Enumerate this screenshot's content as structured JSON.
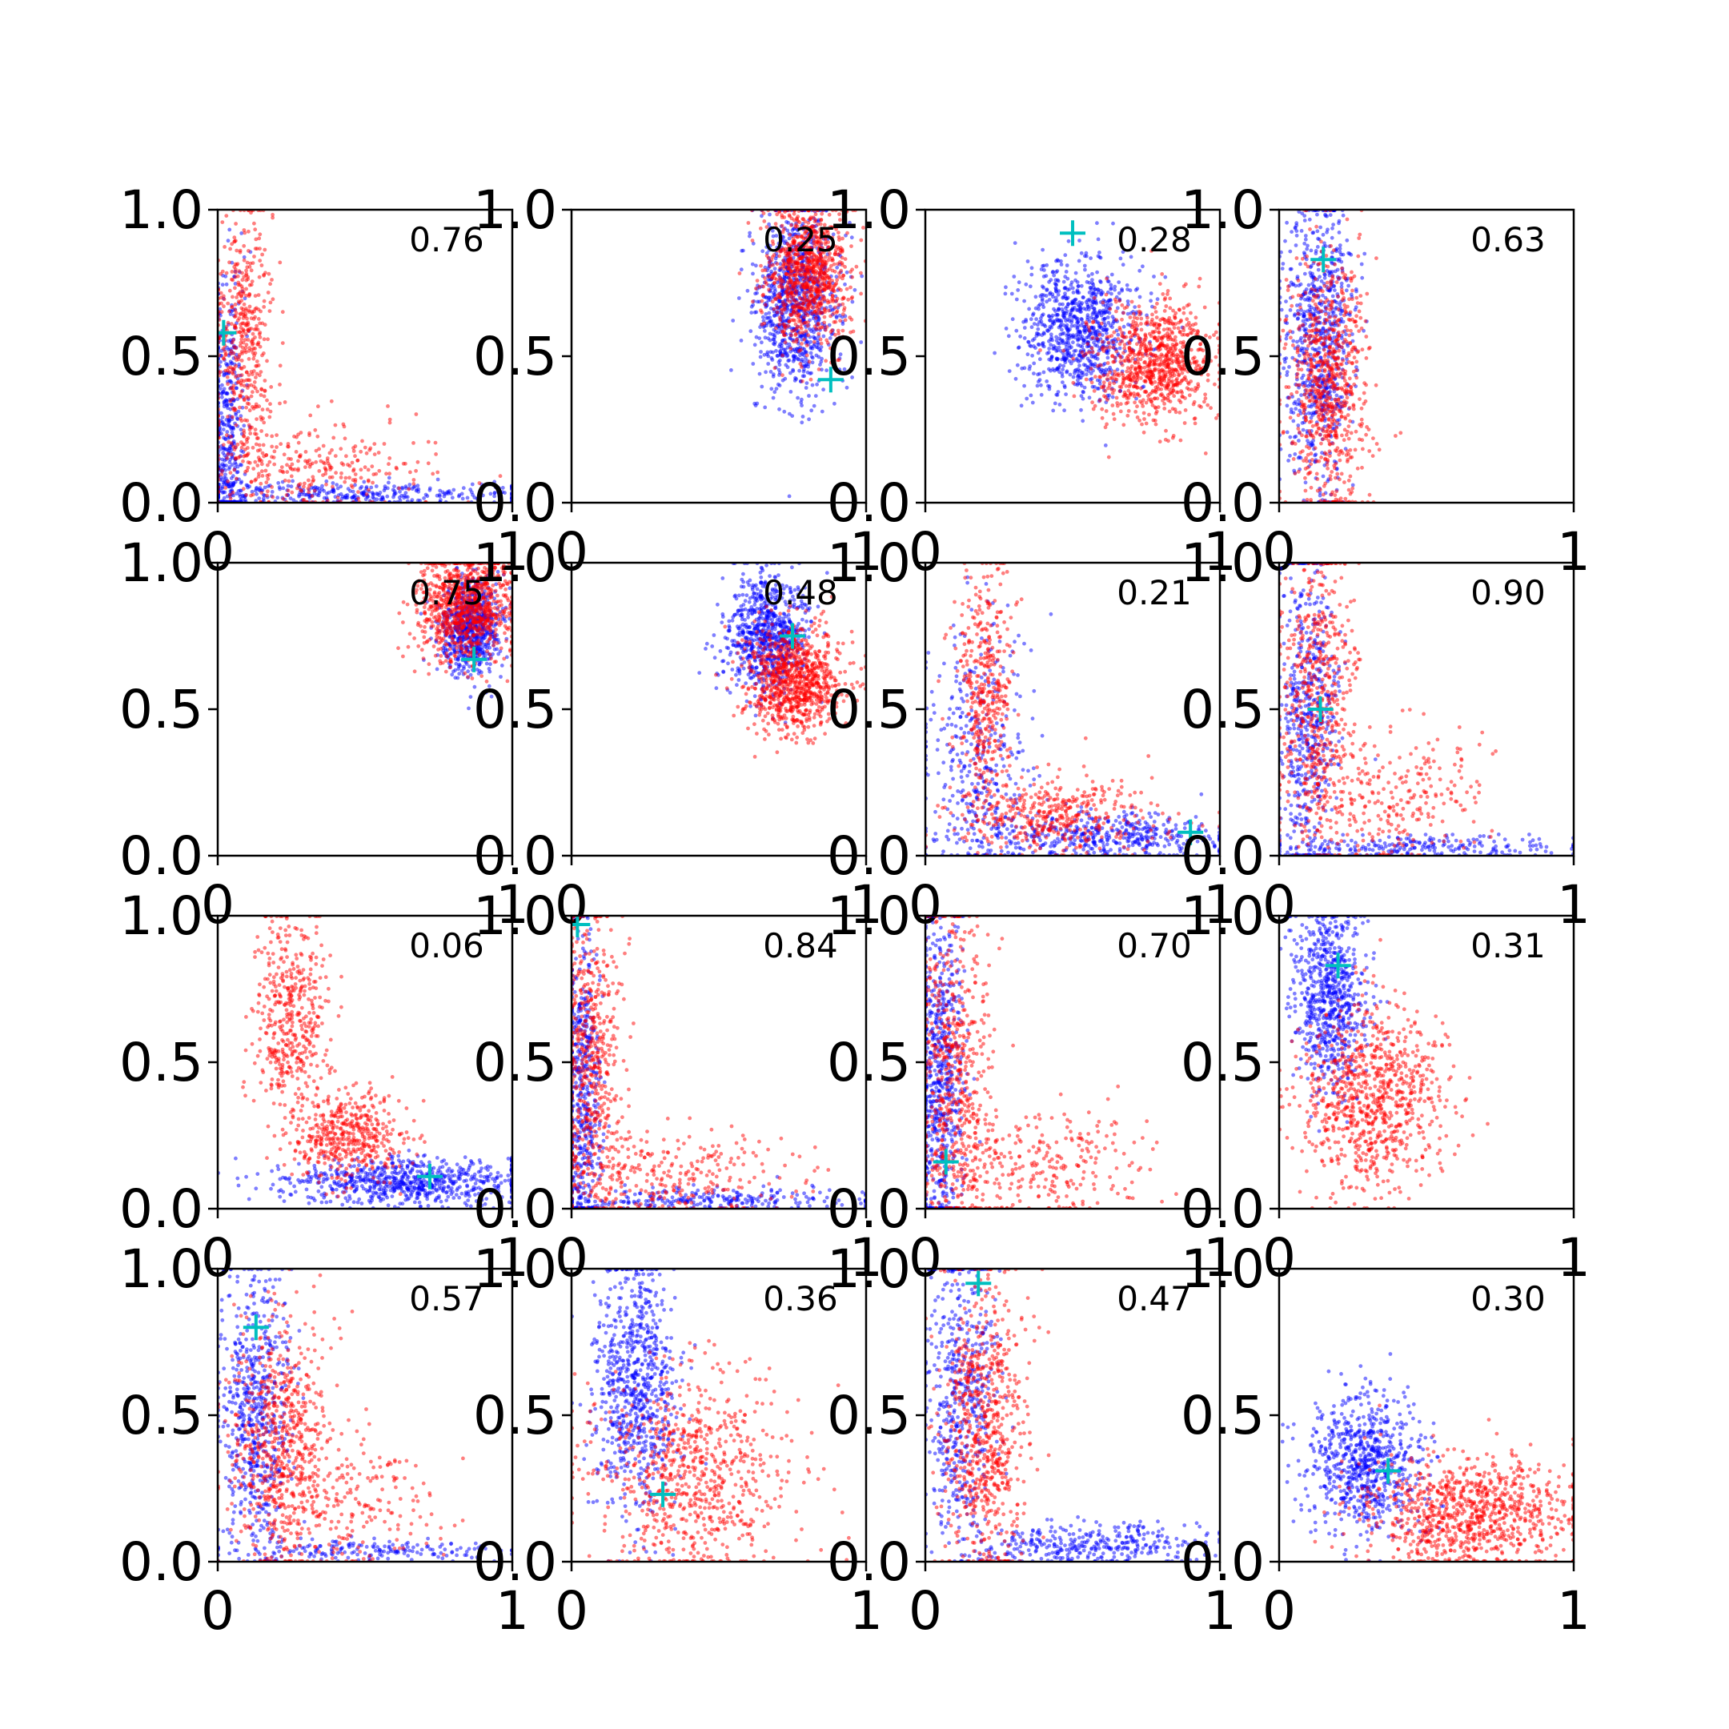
{
  "figure": {
    "colors": {
      "series_blue": "#0000ff",
      "series_red": "#ff0000",
      "marker": "#00bfbf",
      "axes": "#000000",
      "background": "#ffffff"
    }
  },
  "chart_data": [
    {
      "type": "scatter",
      "annotation": "0.76",
      "xlim": [
        0,
        1
      ],
      "ylim": [
        0,
        1
      ],
      "x_ticks": [
        "0",
        "1"
      ],
      "y_ticks": [
        "0.0",
        "0.5",
        "1.0"
      ],
      "marker": [
        0.02,
        0.58
      ],
      "clusters": {
        "blue": [
          {
            "cx": 0.03,
            "cy": 0.25,
            "sx": 0.03,
            "sy": 0.25,
            "n": 450
          },
          {
            "cx": 0.45,
            "cy": 0.03,
            "sx": 0.3,
            "sy": 0.02,
            "n": 320
          }
        ],
        "red": [
          {
            "cx": 0.09,
            "cy": 0.55,
            "sx": 0.05,
            "sy": 0.22,
            "n": 450
          },
          {
            "cx": 0.3,
            "cy": 0.12,
            "sx": 0.2,
            "sy": 0.08,
            "n": 300
          }
        ]
      }
    },
    {
      "type": "scatter",
      "annotation": "0.25",
      "xlim": [
        0,
        1
      ],
      "ylim": [
        0,
        1
      ],
      "x_ticks": [
        "0",
        "1"
      ],
      "y_ticks": [
        "0.0",
        "0.5",
        "1.0"
      ],
      "marker": [
        0.88,
        0.42
      ],
      "clusters": {
        "blue": [
          {
            "cx": 0.76,
            "cy": 0.68,
            "sx": 0.07,
            "sy": 0.16,
            "n": 900
          }
        ],
        "red": [
          {
            "cx": 0.8,
            "cy": 0.78,
            "sx": 0.07,
            "sy": 0.12,
            "n": 900
          }
        ]
      }
    },
    {
      "type": "scatter",
      "annotation": "0.28",
      "xlim": [
        0,
        1
      ],
      "ylim": [
        0,
        1
      ],
      "x_ticks": [
        "0",
        "1"
      ],
      "y_ticks": [
        "0.0",
        "0.5",
        "1.0"
      ],
      "marker": [
        0.5,
        0.92
      ],
      "clusters": {
        "blue": [
          {
            "cx": 0.52,
            "cy": 0.6,
            "sx": 0.1,
            "sy": 0.12,
            "n": 850
          }
        ],
        "red": [
          {
            "cx": 0.78,
            "cy": 0.48,
            "sx": 0.1,
            "sy": 0.1,
            "n": 850
          }
        ]
      }
    },
    {
      "type": "scatter",
      "annotation": "0.63",
      "xlim": [
        0,
        1
      ],
      "ylim": [
        0,
        1
      ],
      "x_ticks": [
        "0",
        "1"
      ],
      "y_ticks": [
        "0.0",
        "0.5",
        "1.0"
      ],
      "marker": [
        0.15,
        0.83
      ],
      "clusters": {
        "blue": [
          {
            "cx": 0.14,
            "cy": 0.55,
            "sx": 0.06,
            "sy": 0.25,
            "n": 750
          }
        ],
        "red": [
          {
            "cx": 0.17,
            "cy": 0.4,
            "sx": 0.07,
            "sy": 0.24,
            "n": 750
          }
        ]
      }
    },
    {
      "type": "scatter",
      "annotation": "0.75",
      "xlim": [
        0,
        1
      ],
      "ylim": [
        0,
        1
      ],
      "x_ticks": [
        "0",
        "1"
      ],
      "y_ticks": [
        "0.0",
        "0.5",
        "1.0"
      ],
      "marker": [
        0.87,
        0.67
      ],
      "clusters": {
        "blue": [
          {
            "cx": 0.86,
            "cy": 0.78,
            "sx": 0.05,
            "sy": 0.08,
            "n": 700
          }
        ],
        "red": [
          {
            "cx": 0.84,
            "cy": 0.85,
            "sx": 0.08,
            "sy": 0.09,
            "n": 900
          }
        ]
      }
    },
    {
      "type": "scatter",
      "annotation": "0.48",
      "xlim": [
        0,
        1
      ],
      "ylim": [
        0,
        1
      ],
      "x_ticks": [
        "0",
        "1"
      ],
      "y_ticks": [
        "0.0",
        "0.5",
        "1.0"
      ],
      "marker": [
        0.75,
        0.75
      ],
      "clusters": {
        "blue": [
          {
            "cx": 0.66,
            "cy": 0.75,
            "sx": 0.07,
            "sy": 0.1,
            "n": 750
          }
        ],
        "red": [
          {
            "cx": 0.76,
            "cy": 0.6,
            "sx": 0.08,
            "sy": 0.09,
            "n": 900
          }
        ]
      }
    },
    {
      "type": "scatter",
      "annotation": "0.21",
      "xlim": [
        0,
        1
      ],
      "ylim": [
        0,
        1
      ],
      "x_ticks": [
        "0",
        "1"
      ],
      "y_ticks": [
        "0.0",
        "0.5",
        "1.0"
      ],
      "marker": [
        0.9,
        0.08
      ],
      "clusters": {
        "blue": [
          {
            "cx": 0.18,
            "cy": 0.35,
            "sx": 0.09,
            "sy": 0.22,
            "n": 350
          },
          {
            "cx": 0.6,
            "cy": 0.07,
            "sx": 0.22,
            "sy": 0.04,
            "n": 450
          }
        ],
        "red": [
          {
            "cx": 0.2,
            "cy": 0.55,
            "sx": 0.05,
            "sy": 0.22,
            "n": 400
          },
          {
            "cx": 0.45,
            "cy": 0.14,
            "sx": 0.18,
            "sy": 0.07,
            "n": 400
          }
        ]
      }
    },
    {
      "type": "scatter",
      "annotation": "0.90",
      "xlim": [
        0,
        1
      ],
      "ylim": [
        0,
        1
      ],
      "x_ticks": [
        "0",
        "1"
      ],
      "y_ticks": [
        "0.0",
        "0.5",
        "1.0"
      ],
      "marker": [
        0.14,
        0.5
      ],
      "clusters": {
        "blue": [
          {
            "cx": 0.1,
            "cy": 0.45,
            "sx": 0.05,
            "sy": 0.28,
            "n": 550
          },
          {
            "cx": 0.5,
            "cy": 0.03,
            "sx": 0.25,
            "sy": 0.02,
            "n": 220
          }
        ],
        "red": [
          {
            "cx": 0.13,
            "cy": 0.55,
            "sx": 0.06,
            "sy": 0.25,
            "n": 500
          },
          {
            "cx": 0.35,
            "cy": 0.18,
            "sx": 0.18,
            "sy": 0.12,
            "n": 300
          }
        ]
      }
    },
    {
      "type": "scatter",
      "annotation": "0.06",
      "xlim": [
        0,
        1
      ],
      "ylim": [
        0,
        1
      ],
      "x_ticks": [
        "0",
        "1"
      ],
      "y_ticks": [
        "0.0",
        "0.5",
        "1.0"
      ],
      "marker": [
        0.72,
        0.11
      ],
      "clusters": {
        "blue": [
          {
            "cx": 0.65,
            "cy": 0.09,
            "sx": 0.2,
            "sy": 0.04,
            "n": 700
          }
        ],
        "red": [
          {
            "cx": 0.25,
            "cy": 0.65,
            "sx": 0.06,
            "sy": 0.18,
            "n": 450
          },
          {
            "cx": 0.45,
            "cy": 0.25,
            "sx": 0.1,
            "sy": 0.08,
            "n": 450
          }
        ]
      }
    },
    {
      "type": "scatter",
      "annotation": "0.84",
      "xlim": [
        0,
        1
      ],
      "ylim": [
        0,
        1
      ],
      "x_ticks": [
        "0",
        "1"
      ],
      "y_ticks": [
        "0.0",
        "0.5",
        "1.0"
      ],
      "marker": [
        0.02,
        0.97
      ],
      "clusters": {
        "blue": [
          {
            "cx": 0.04,
            "cy": 0.4,
            "sx": 0.03,
            "sy": 0.28,
            "n": 500
          },
          {
            "cx": 0.45,
            "cy": 0.03,
            "sx": 0.28,
            "sy": 0.02,
            "n": 250
          }
        ],
        "red": [
          {
            "cx": 0.07,
            "cy": 0.5,
            "sx": 0.05,
            "sy": 0.26,
            "n": 500
          },
          {
            "cx": 0.35,
            "cy": 0.12,
            "sx": 0.2,
            "sy": 0.08,
            "n": 300
          }
        ]
      }
    },
    {
      "type": "scatter",
      "annotation": "0.70",
      "xlim": [
        0,
        1
      ],
      "ylim": [
        0,
        1
      ],
      "x_ticks": [
        "0",
        "1"
      ],
      "y_ticks": [
        "0.0",
        "0.5",
        "1.0"
      ],
      "marker": [
        0.07,
        0.16
      ],
      "clusters": {
        "blue": [
          {
            "cx": 0.05,
            "cy": 0.45,
            "sx": 0.04,
            "sy": 0.28,
            "n": 650
          }
        ],
        "red": [
          {
            "cx": 0.1,
            "cy": 0.45,
            "sx": 0.06,
            "sy": 0.28,
            "n": 550
          },
          {
            "cx": 0.38,
            "cy": 0.14,
            "sx": 0.2,
            "sy": 0.09,
            "n": 300
          }
        ]
      }
    },
    {
      "type": "scatter",
      "annotation": "0.31",
      "xlim": [
        0,
        1
      ],
      "ylim": [
        0,
        1
      ],
      "x_ticks": [
        "0",
        "1"
      ],
      "y_ticks": [
        "0.0",
        "0.5",
        "1.0"
      ],
      "marker": [
        0.2,
        0.83
      ],
      "clusters": {
        "blue": [
          {
            "cx": 0.17,
            "cy": 0.72,
            "sx": 0.06,
            "sy": 0.16,
            "n": 700
          }
        ],
        "red": [
          {
            "cx": 0.32,
            "cy": 0.38,
            "sx": 0.12,
            "sy": 0.16,
            "n": 850
          }
        ]
      }
    },
    {
      "type": "scatter",
      "annotation": "0.57",
      "xlim": [
        0,
        1
      ],
      "ylim": [
        0,
        1
      ],
      "x_ticks": [
        "0",
        "1"
      ],
      "y_ticks": [
        "0.0",
        "0.5",
        "1.0"
      ],
      "marker": [
        0.13,
        0.8
      ],
      "clusters": {
        "blue": [
          {
            "cx": 0.13,
            "cy": 0.5,
            "sx": 0.06,
            "sy": 0.25,
            "n": 600
          },
          {
            "cx": 0.5,
            "cy": 0.04,
            "sx": 0.25,
            "sy": 0.02,
            "n": 180
          }
        ],
        "red": [
          {
            "cx": 0.22,
            "cy": 0.4,
            "sx": 0.09,
            "sy": 0.22,
            "n": 650
          },
          {
            "cx": 0.45,
            "cy": 0.2,
            "sx": 0.15,
            "sy": 0.12,
            "n": 200
          }
        ]
      }
    },
    {
      "type": "scatter",
      "annotation": "0.36",
      "xlim": [
        0,
        1
      ],
      "ylim": [
        0,
        1
      ],
      "x_ticks": [
        "0",
        "1"
      ],
      "y_ticks": [
        "0.0",
        "0.5",
        "1.0"
      ],
      "marker": [
        0.31,
        0.23
      ],
      "clusters": {
        "blue": [
          {
            "cx": 0.22,
            "cy": 0.6,
            "sx": 0.07,
            "sy": 0.22,
            "n": 750
          }
        ],
        "red": [
          {
            "cx": 0.4,
            "cy": 0.3,
            "sx": 0.17,
            "sy": 0.18,
            "n": 750
          }
        ]
      }
    },
    {
      "type": "scatter",
      "annotation": "0.47",
      "xlim": [
        0,
        1
      ],
      "ylim": [
        0,
        1
      ],
      "x_ticks": [
        "0",
        "1"
      ],
      "y_ticks": [
        "0.0",
        "0.5",
        "1.0"
      ],
      "marker": [
        0.18,
        0.95
      ],
      "clusters": {
        "blue": [
          {
            "cx": 0.12,
            "cy": 0.55,
            "sx": 0.06,
            "sy": 0.25,
            "n": 500
          },
          {
            "cx": 0.55,
            "cy": 0.06,
            "sx": 0.22,
            "sy": 0.04,
            "n": 350
          }
        ],
        "red": [
          {
            "cx": 0.2,
            "cy": 0.45,
            "sx": 0.07,
            "sy": 0.25,
            "n": 700
          }
        ]
      }
    },
    {
      "type": "scatter",
      "annotation": "0.30",
      "xlim": [
        0,
        1
      ],
      "ylim": [
        0,
        1
      ],
      "x_ticks": [
        "0",
        "1"
      ],
      "y_ticks": [
        "0.0",
        "0.5",
        "1.0"
      ],
      "marker": [
        0.37,
        0.31
      ],
      "clusters": {
        "blue": [
          {
            "cx": 0.3,
            "cy": 0.33,
            "sx": 0.1,
            "sy": 0.12,
            "n": 750
          }
        ],
        "red": [
          {
            "cx": 0.65,
            "cy": 0.17,
            "sx": 0.18,
            "sy": 0.1,
            "n": 900
          }
        ]
      }
    }
  ]
}
